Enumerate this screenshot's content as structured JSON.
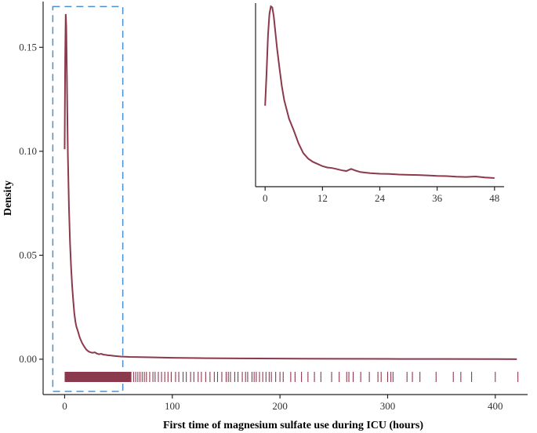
{
  "chart_data": [
    {
      "type": "line",
      "title": "",
      "xlabel": "First time of magnesium sulfate use during ICU (hours)",
      "ylabel": "Density",
      "xlim": [
        -20,
        430
      ],
      "ylim": [
        -0.017,
        0.172
      ],
      "x_ticks": [
        0,
        100,
        200,
        300,
        400
      ],
      "y_ticks": [
        0.0,
        0.05,
        0.1,
        0.15
      ],
      "x_tick_labels": [
        "0",
        "100",
        "200",
        "300",
        "400"
      ],
      "y_tick_labels": [
        "0.00",
        "0.05",
        "0.10",
        "0.15"
      ],
      "grid": false,
      "series": [
        {
          "color": "#8b3a4e",
          "x": [
            0,
            0.5,
            1,
            1.5,
            2,
            2.5,
            3,
            4,
            5,
            6,
            7,
            8,
            9,
            10,
            11,
            12,
            14,
            16,
            18,
            20,
            22,
            24,
            26,
            28,
            30,
            32,
            34,
            36,
            38,
            40,
            42,
            44,
            46,
            48,
            52,
            56,
            60,
            70,
            80,
            100,
            130,
            160,
            200,
            250,
            300,
            350,
            400,
            420
          ],
          "y": [
            0.101,
            0.145,
            0.166,
            0.16,
            0.14,
            0.118,
            0.098,
            0.073,
            0.056,
            0.044,
            0.035,
            0.028,
            0.022,
            0.018,
            0.0155,
            0.014,
            0.0105,
            0.008,
            0.0062,
            0.0047,
            0.0038,
            0.0033,
            0.0031,
            0.0033,
            0.0027,
            0.0024,
            0.0026,
            0.0022,
            0.0021,
            0.0019,
            0.0018,
            0.0017,
            0.0016,
            0.0015,
            0.0013,
            0.0012,
            0.0011,
            0.001,
            0.0009,
            0.0007,
            0.0005,
            0.0004,
            0.0003,
            0.0002,
            0.00015,
            0.0001,
            5e-05,
            3e-05
          ]
        }
      ],
      "rug": {
        "color": "#8b3a4e",
        "dense_range": [
          0,
          62
        ],
        "values": [
          64,
          66,
          68,
          70,
          72,
          74,
          76,
          79,
          82,
          84,
          87,
          90,
          93,
          96,
          99,
          103,
          106,
          110,
          113,
          117,
          120,
          124,
          127,
          131,
          135,
          139,
          142,
          146,
          150,
          152,
          154,
          158,
          161,
          165,
          168,
          170,
          174,
          176,
          178,
          181,
          184,
          187,
          190,
          192,
          196,
          200,
          203,
          210,
          214,
          220,
          226,
          232,
          238,
          248,
          255,
          262,
          264,
          268,
          275,
          283,
          291,
          294,
          300,
          303,
          305,
          318,
          323,
          330,
          345,
          361,
          368,
          378,
          400,
          421
        ]
      },
      "highlight_box": {
        "color": "#4a90d0",
        "x": [
          -11,
          54
        ],
        "y": [
          -0.0155,
          0.1696
        ]
      }
    },
    {
      "type": "line",
      "title": "",
      "xlabel": "",
      "ylabel": "",
      "xlim": [
        -2,
        50
      ],
      "ylim": [
        0,
        0.17
      ],
      "x_ticks": [
        0,
        12,
        24,
        36,
        48
      ],
      "x_tick_labels": [
        "0",
        "12",
        "24",
        "36",
        "48"
      ],
      "grid": false,
      "series": [
        {
          "color": "#8b3a4e",
          "x": [
            0,
            0.3,
            0.6,
            0.9,
            1.2,
            1.5,
            1.8,
            2.1,
            2.5,
            3,
            3.5,
            4,
            5,
            6,
            7,
            8,
            9,
            10,
            11,
            12,
            13,
            14,
            15,
            16,
            17,
            18,
            19,
            20,
            22,
            24,
            26,
            28,
            30,
            32,
            34,
            36,
            38,
            40,
            42,
            44,
            46,
            48
          ],
          "y": [
            0.075,
            0.105,
            0.14,
            0.16,
            0.167,
            0.166,
            0.158,
            0.145,
            0.128,
            0.11,
            0.093,
            0.08,
            0.063,
            0.052,
            0.04,
            0.031,
            0.026,
            0.023,
            0.021,
            0.019,
            0.0178,
            0.0173,
            0.0163,
            0.0152,
            0.0145,
            0.0165,
            0.0148,
            0.0135,
            0.0125,
            0.012,
            0.0118,
            0.0113,
            0.011,
            0.0108,
            0.0104,
            0.01,
            0.0098,
            0.0093,
            0.009,
            0.0094,
            0.0085,
            0.008
          ]
        }
      ]
    }
  ]
}
